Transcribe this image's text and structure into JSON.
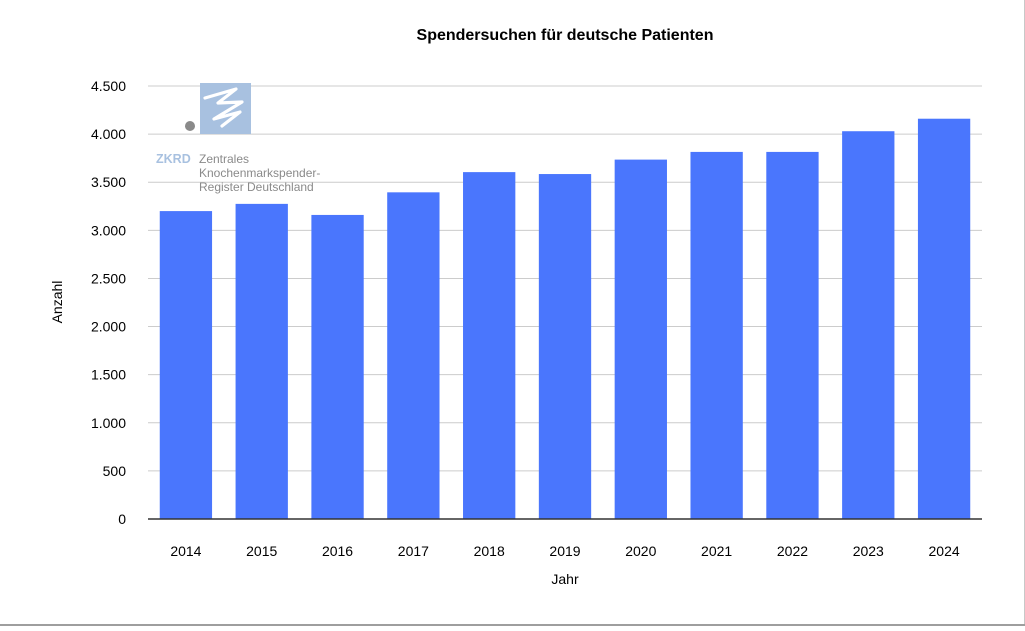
{
  "chart_data": {
    "type": "bar",
    "title": "Spendersuchen für deutsche Patienten",
    "xlabel": "Jahr",
    "ylabel": "Anzahl",
    "categories": [
      "2014",
      "2015",
      "2016",
      "2017",
      "2018",
      "2019",
      "2020",
      "2021",
      "2022",
      "2023",
      "2024"
    ],
    "values": [
      3200,
      3275,
      3160,
      3395,
      3605,
      3585,
      3735,
      3815,
      3815,
      4030,
      4160
    ],
    "ylim": [
      0,
      4500
    ],
    "yticks": [
      0,
      500,
      1000,
      1500,
      2000,
      2500,
      3000,
      3500,
      4000,
      4500
    ],
    "ytick_labels": [
      "0",
      "500",
      "1.000",
      "1.500",
      "2.000",
      "2.500",
      "3.000",
      "3.500",
      "4.000",
      "4.500"
    ],
    "grid": true,
    "legend": "none"
  },
  "logo": {
    "abbr": "ZKRD",
    "line1": "Zentrales",
    "line2": "Knochenmarkspender-",
    "line3": "Register Deutschland"
  },
  "colors": {
    "bar": "#4a76fd",
    "grid": "#cccccc",
    "axis": "#333333",
    "logo_blue": "#a8c1e0",
    "logo_gray": "#8a8a8a"
  }
}
